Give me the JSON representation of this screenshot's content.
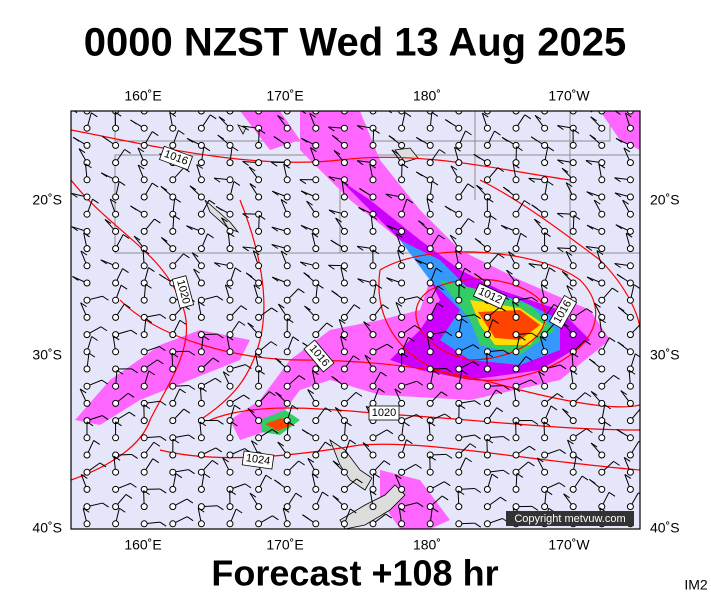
{
  "header": {
    "title": "0000 NZST Wed 13 Aug 2025"
  },
  "map": {
    "top_labels": [
      "160˚E",
      "170˚E",
      "180˚",
      "170˚W"
    ],
    "bottom_labels": [
      "160˚E",
      "170˚E",
      "180˚",
      "170˚W"
    ],
    "left_labels": [
      "20˚S",
      "30˚S",
      "40˚S"
    ],
    "right_labels": [
      "20˚S",
      "30˚S",
      "40˚S"
    ],
    "isobar_labels": [
      "1016",
      "1020",
      "1012",
      "1016",
      "1016",
      "1020",
      "1024"
    ],
    "copyright": "Copyright metvuw.com"
  },
  "footer": {
    "forecast": "Forecast +108 hr",
    "code": "IM2"
  }
}
